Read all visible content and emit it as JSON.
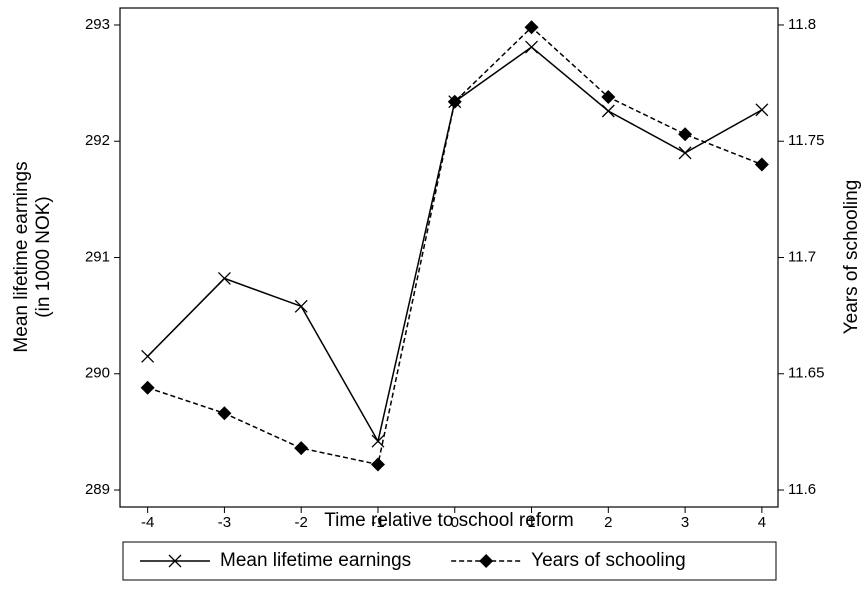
{
  "chart_data": {
    "type": "line",
    "xlabel": "Time relative to school reform",
    "ylabel": [
      "Mean lifetime earnings",
      "(in 1000 NOK)"
    ],
    "y2label": "Years of schooling",
    "x": [
      -4,
      -3,
      -2,
      -1,
      0,
      1,
      2,
      3,
      4
    ],
    "xlim": [
      -4.36,
      4.21
    ],
    "xticks": [
      -4,
      -3,
      -2,
      -1,
      0,
      1,
      2,
      3,
      4
    ],
    "ylim": [
      288.854,
      293.146
    ],
    "yticks": [
      289,
      290,
      291,
      292,
      293
    ],
    "y2lim": [
      11.5927,
      11.8073
    ],
    "y2ticks": [
      11.6,
      11.65,
      11.7,
      11.75,
      11.8
    ],
    "legend": "bottom",
    "series": [
      {
        "name": "Mean lifetime earnings",
        "color": "#000000",
        "marker": "x",
        "line_style": "solid",
        "values": [
          290.15,
          290.82,
          290.58,
          289.42,
          292.34,
          292.81,
          292.26,
          291.9,
          292.27
        ]
      },
      {
        "name": "Years of schooling",
        "color": "#000000",
        "marker": "diamond",
        "line_style": "dashed",
        "axis": "y2",
        "values": [
          11.644,
          11.633,
          11.618,
          11.611,
          11.767,
          11.799,
          11.769,
          11.753,
          11.74
        ]
      }
    ]
  }
}
